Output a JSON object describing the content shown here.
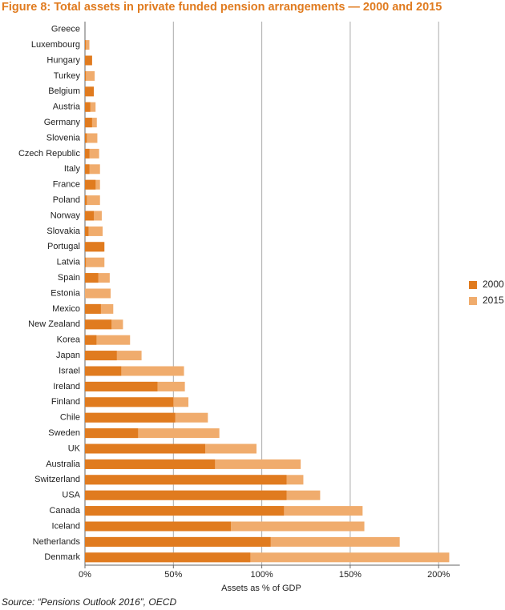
{
  "chart_data": {
    "type": "bar",
    "orientation": "horizontal",
    "overlap": true,
    "title": "Figure 8: Total assets in private funded pension arrangements — 2000 and 2015",
    "xlabel": "Assets as % of GDP",
    "source": "Source: “Pensions Outlook 2016”, OECD",
    "categories": [
      "Greece",
      "Luxembourg",
      "Hungary",
      "Turkey",
      "Belgium",
      "Austria",
      "Germany",
      "Slovenia",
      "Czech Republic",
      "Italy",
      "France",
      "Poland",
      "Norway",
      "Slovakia",
      "Portugal",
      "Latvia",
      "Spain",
      "Estonia",
      "Mexico",
      "New Zealand",
      "Korea",
      "Japan",
      "Israel",
      "Ireland",
      "Finland",
      "Chile",
      "Sweden",
      "UK",
      "Australia",
      "Switzerland",
      "USA",
      "Canada",
      "Iceland",
      "Netherlands",
      "Denmark"
    ],
    "series": [
      {
        "name": "2015",
        "color": "#f0ac6d",
        "values": [
          0,
          2.5,
          4,
          5.5,
          5,
          6,
          6.7,
          7,
          8,
          8.5,
          8.5,
          8.5,
          9.5,
          10,
          10.5,
          11,
          14,
          14.5,
          16,
          21.5,
          25.5,
          32,
          56,
          56.5,
          58.5,
          69.5,
          76,
          97,
          122,
          123.5,
          133,
          157,
          158,
          178,
          206
        ]
      },
      {
        "name": "2000",
        "color": "#e07b1f",
        "values": [
          0,
          0.5,
          4,
          0.5,
          5,
          3,
          4,
          1,
          2.5,
          2.5,
          6,
          1,
          5,
          2,
          11,
          0.5,
          7.5,
          0,
          9,
          15,
          6.5,
          18,
          20.5,
          41,
          50,
          51,
          30,
          68,
          73.5,
          114,
          114,
          112.5,
          82.5,
          105,
          93.5
        ]
      }
    ],
    "xlim": [
      0,
      212
    ],
    "xticks": [
      {
        "value": 0,
        "label": "0%"
      },
      {
        "value": 50,
        "label": "50%"
      },
      {
        "value": 100,
        "label": "100%"
      },
      {
        "value": 150,
        "label": "150%"
      },
      {
        "value": 200,
        "label": "200%"
      }
    ],
    "grid": true,
    "legend": "right"
  }
}
